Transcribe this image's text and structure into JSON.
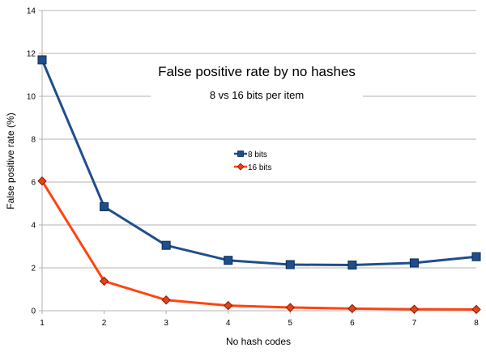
{
  "chart_data": {
    "type": "line",
    "title": "False positive rate by no hashes",
    "subtitle": "8 vs 16 bits per item",
    "xlabel": "No hash codes",
    "ylabel": "False positive rate (%)",
    "x": [
      1,
      2,
      3,
      4,
      5,
      6,
      7,
      8
    ],
    "xlim": [
      1,
      8
    ],
    "ylim": [
      0,
      14
    ],
    "yticks": [
      0,
      2,
      4,
      6,
      8,
      10,
      12,
      14
    ],
    "grid": "horizontal",
    "legend_position": "center",
    "series": [
      {
        "name": "8 bits",
        "values": [
          11.7,
          4.85,
          3.05,
          2.35,
          2.15,
          2.13,
          2.23,
          2.52
        ],
        "color": "#1f4e8c",
        "marker": "square"
      },
      {
        "name": "16 bits",
        "values": [
          6.05,
          1.38,
          0.5,
          0.24,
          0.15,
          0.1,
          0.07,
          0.06
        ],
        "color": "#ff4410",
        "marker": "diamond"
      }
    ]
  }
}
